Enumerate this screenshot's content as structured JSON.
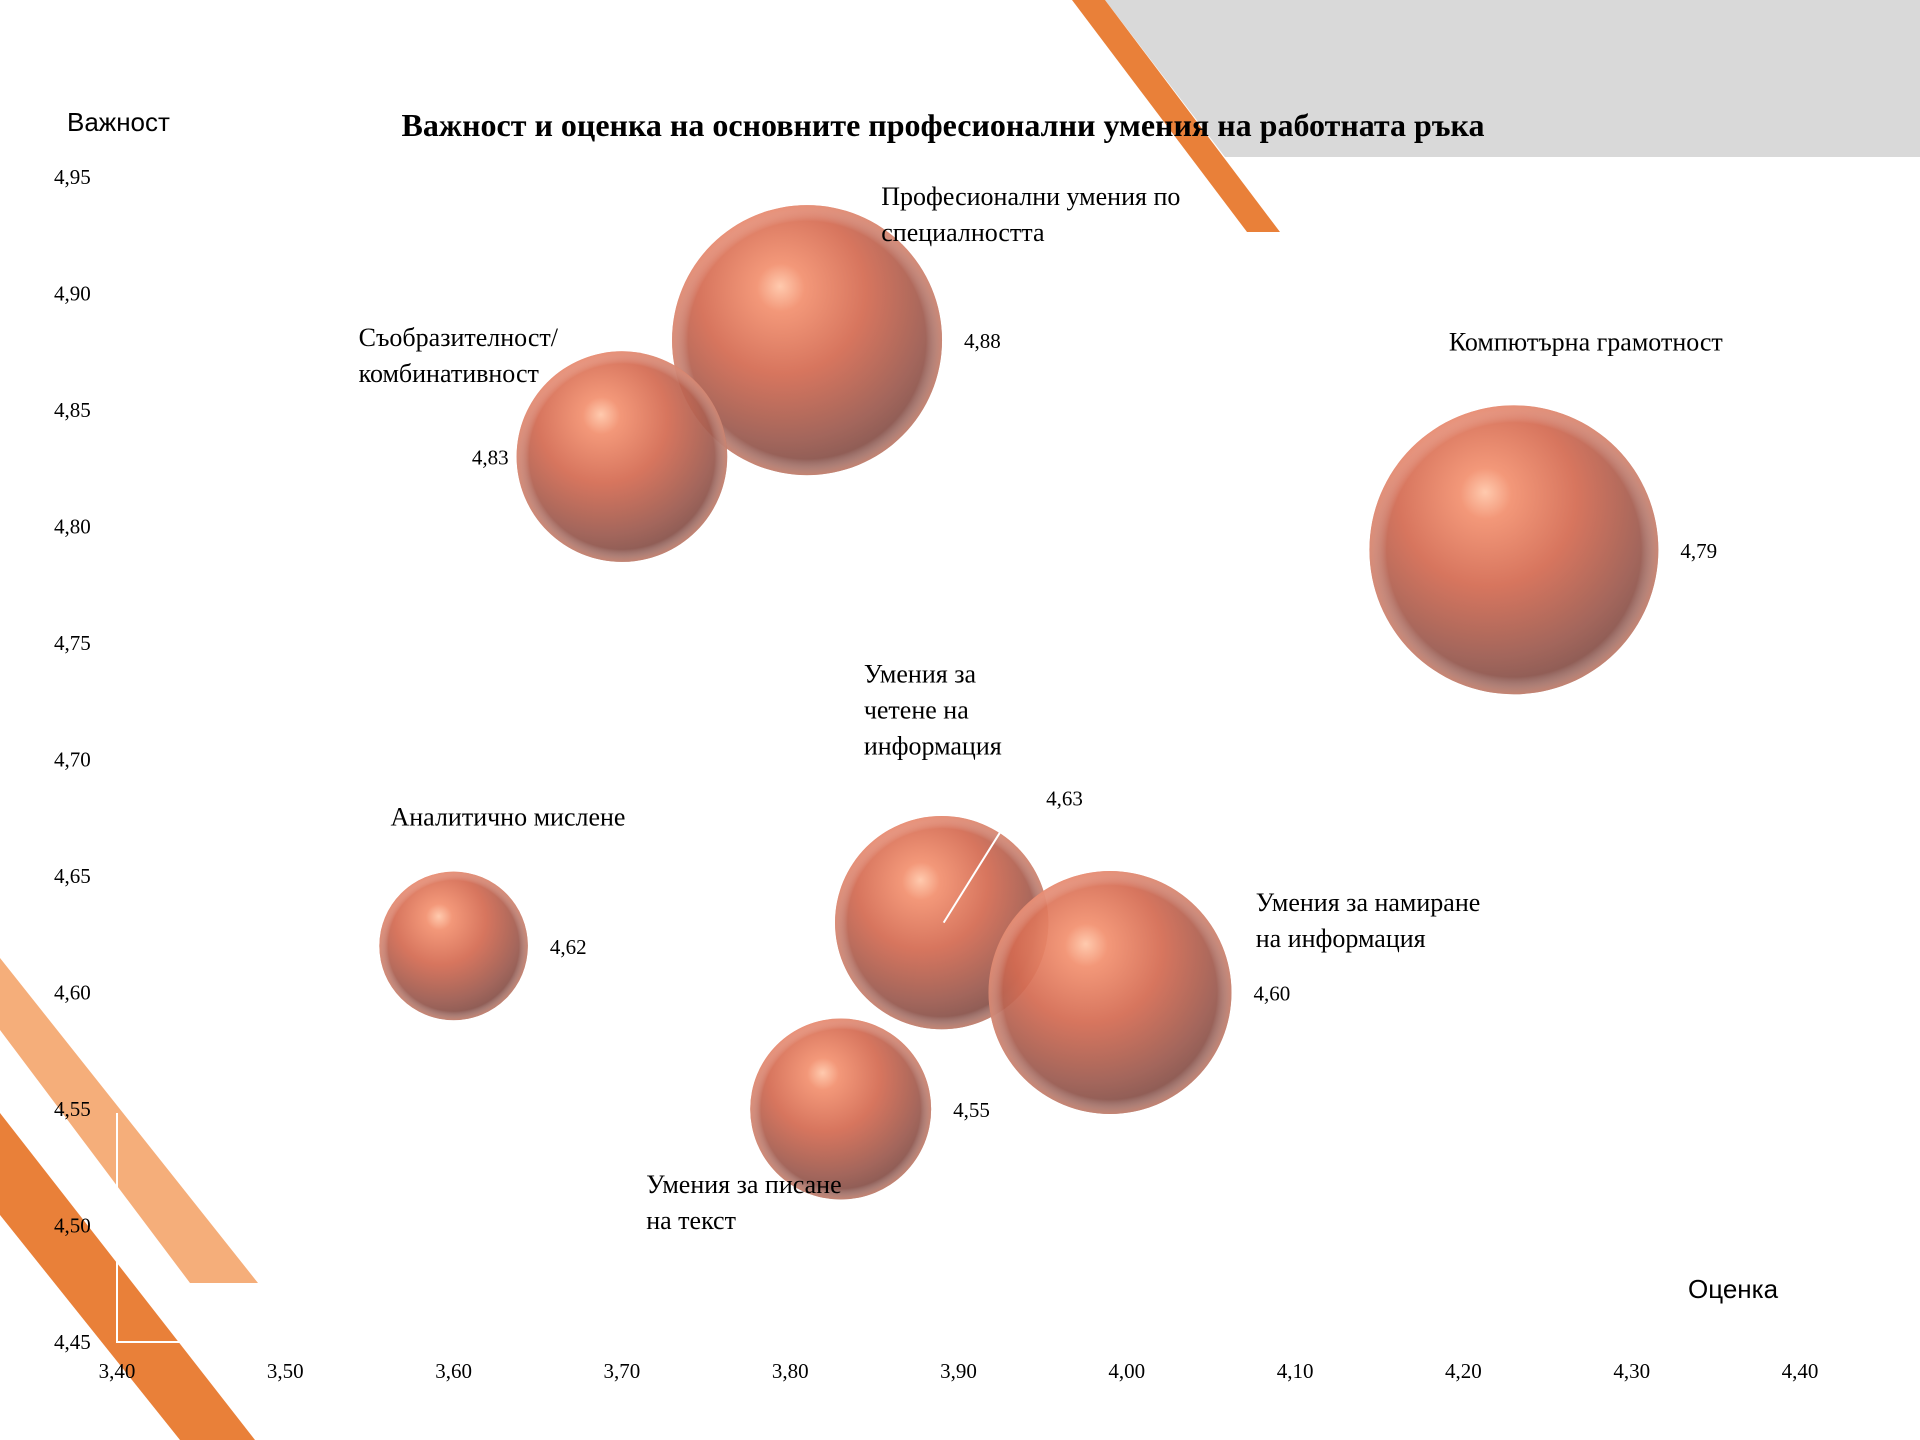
{
  "chart_data": {
    "type": "bubble",
    "title": "Важност и оценка на основните професионални умения на работната ръка",
    "xlabel": "Оценка",
    "ylabel": "Важност",
    "xlim": [
      3.4,
      4.4
    ],
    "ylim": [
      4.45,
      4.95
    ],
    "x_ticks": [
      "3,40",
      "3,50",
      "3,60",
      "3,70",
      "3,80",
      "3,90",
      "4,00",
      "4,10",
      "4,20",
      "4,30",
      "4,40"
    ],
    "y_ticks": [
      "4,45",
      "4,50",
      "4,55",
      "4,60",
      "4,65",
      "4,70",
      "4,75",
      "4,80",
      "4,85",
      "4,90",
      "4,95"
    ],
    "grid": false,
    "legend": "none",
    "bubble_color": "#e2765a",
    "points": [
      {
        "name": "Професионални умения по специалността",
        "x": 3.81,
        "y": 4.88,
        "size": 1.0,
        "value_label": "4,88",
        "name_lines": [
          "Професионални умения по",
          "специалността"
        ]
      },
      {
        "name": "Съобразителност/ комбинативност",
        "x": 3.7,
        "y": 4.83,
        "size": 0.78,
        "value_label": "4,83",
        "name_lines": [
          "Съобразителност/",
          "комбинативност"
        ]
      },
      {
        "name": "Компютърна грамотност",
        "x": 4.23,
        "y": 4.79,
        "size": 1.07,
        "value_label": "4,79",
        "name_lines": [
          "Компютърна грамотност"
        ]
      },
      {
        "name": "Аналитично мислене",
        "x": 3.6,
        "y": 4.62,
        "size": 0.55,
        "value_label": "4,62",
        "name_lines": [
          "Аналитично мислене"
        ]
      },
      {
        "name": "Умения за четене на информация",
        "x": 3.89,
        "y": 4.63,
        "size": 0.79,
        "value_label": "4,63",
        "name_lines": [
          "Умения за",
          "четене на",
          "информация"
        ]
      },
      {
        "name": "Умения за намиране на информация",
        "x": 3.99,
        "y": 4.6,
        "size": 0.9,
        "value_label": "4,60",
        "name_lines": [
          "Умения за намиране",
          "на информация"
        ]
      },
      {
        "name": "Умения за писане на текст",
        "x": 3.83,
        "y": 4.55,
        "size": 0.67,
        "value_label": "4,55",
        "name_lines": [
          "Умения за писане",
          "на текст"
        ]
      }
    ]
  }
}
